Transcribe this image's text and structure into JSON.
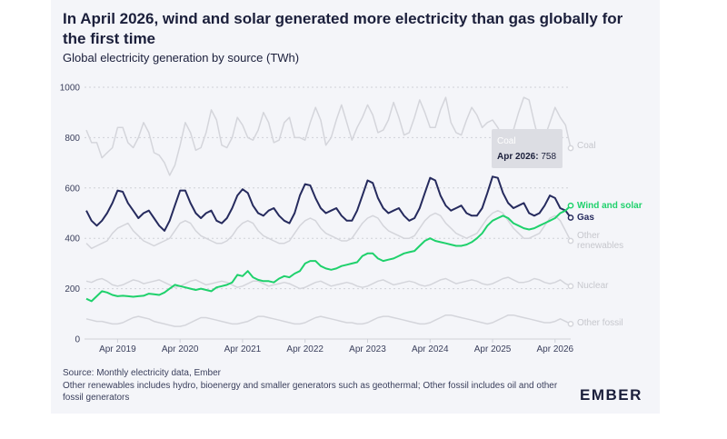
{
  "title": "In April 2026, wind and solar generated more electricity than gas globally for the first time",
  "subtitle": "Global electricity generation by source (TWh)",
  "source": "Source: Monthly electricity data, Ember",
  "notes": "Other renewables includes hydro, bioenergy and smaller generators such as geothermal; Other fossil includes oil and other fossil generators",
  "logo": "EMBER",
  "colors": {
    "wind_solar": "#1fd16c",
    "gas": "#262b5e",
    "grey": "#d4d5db",
    "grid": "#cfd1d8",
    "faded_label": "#c6c7cd"
  },
  "tooltip": {
    "label": "Apr 2026:",
    "value": "758",
    "series": "Coal"
  },
  "chart_data": {
    "type": "line",
    "x_start": "2018-10",
    "x_end": "2026-04",
    "x_ticks": [
      "Apr 2019",
      "Apr 2020",
      "Apr 2021",
      "Apr 2022",
      "Apr 2023",
      "Apr 2024",
      "Apr 2025",
      "Apr 2026"
    ],
    "ylim": [
      0,
      1000
    ],
    "yticks": [
      0,
      200,
      400,
      600,
      800,
      1000
    ],
    "grid": true,
    "series": [
      {
        "name": "Coal",
        "highlight": false,
        "end_value": 758,
        "values": [
          830,
          780,
          780,
          720,
          740,
          760,
          840,
          840,
          780,
          760,
          800,
          860,
          820,
          740,
          730,
          700,
          650,
          690,
          770,
          860,
          820,
          750,
          760,
          820,
          910,
          870,
          770,
          760,
          800,
          880,
          850,
          800,
          790,
          830,
          900,
          860,
          780,
          790,
          860,
          880,
          800,
          800,
          790,
          860,
          920,
          870,
          770,
          800,
          870,
          930,
          860,
          790,
          840,
          880,
          930,
          890,
          820,
          830,
          870,
          940,
          880,
          810,
          820,
          880,
          950,
          900,
          840,
          840,
          910,
          960,
          860,
          820,
          810,
          870,
          920,
          890,
          840,
          860,
          870,
          840,
          800,
          780,
          830,
          900,
          960,
          950,
          860,
          780,
          800,
          860,
          920,
          880,
          850,
          758
        ]
      },
      {
        "name": "Other renewables",
        "highlight": false,
        "end_value": 390,
        "values": [
          380,
          360,
          370,
          380,
          390,
          420,
          440,
          450,
          460,
          430,
          410,
          390,
          380,
          370,
          380,
          390,
          400,
          430,
          460,
          470,
          460,
          430,
          410,
          400,
          390,
          380,
          380,
          390,
          410,
          440,
          460,
          470,
          460,
          430,
          410,
          400,
          390,
          380,
          380,
          390,
          420,
          450,
          470,
          480,
          470,
          440,
          420,
          410,
          400,
          390,
          390,
          400,
          430,
          460,
          480,
          490,
          480,
          450,
          430,
          420,
          410,
          400,
          400,
          410,
          440,
          470,
          490,
          500,
          490,
          460,
          440,
          420,
          410,
          400,
          410,
          420,
          450,
          480,
          500,
          510,
          500,
          470,
          440,
          420,
          400,
          400,
          410,
          420,
          450,
          480,
          490,
          470,
          430,
          390
        ]
      },
      {
        "name": "Nuclear",
        "highlight": false,
        "end_value": 210,
        "values": [
          230,
          225,
          235,
          240,
          230,
          215,
          210,
          215,
          225,
          235,
          230,
          220,
          225,
          230,
          235,
          225,
          215,
          205,
          210,
          220,
          230,
          235,
          225,
          215,
          220,
          225,
          230,
          225,
          215,
          205,
          210,
          220,
          230,
          230,
          220,
          210,
          215,
          220,
          225,
          220,
          210,
          200,
          205,
          215,
          225,
          230,
          220,
          210,
          215,
          220,
          225,
          220,
          210,
          205,
          210,
          220,
          230,
          235,
          225,
          215,
          220,
          225,
          230,
          225,
          215,
          210,
          215,
          225,
          235,
          240,
          230,
          220,
          225,
          230,
          235,
          230,
          220,
          215,
          220,
          230,
          240,
          245,
          235,
          225,
          225,
          230,
          240,
          235,
          225,
          220,
          225,
          235,
          220,
          210
        ]
      },
      {
        "name": "Other fossil",
        "highlight": false,
        "end_value": 60,
        "values": [
          80,
          75,
          70,
          70,
          65,
          60,
          60,
          65,
          75,
          85,
          90,
          85,
          80,
          70,
          65,
          60,
          55,
          50,
          50,
          55,
          65,
          75,
          85,
          85,
          80,
          75,
          70,
          65,
          60,
          60,
          65,
          70,
          80,
          90,
          90,
          85,
          80,
          75,
          70,
          65,
          60,
          60,
          65,
          75,
          85,
          90,
          85,
          80,
          75,
          70,
          65,
          65,
          60,
          60,
          65,
          75,
          85,
          90,
          90,
          85,
          80,
          75,
          70,
          65,
          60,
          60,
          65,
          75,
          85,
          95,
          95,
          90,
          85,
          80,
          75,
          70,
          65,
          60,
          65,
          75,
          85,
          95,
          95,
          90,
          85,
          80,
          75,
          70,
          65,
          65,
          70,
          80,
          70,
          60
        ]
      },
      {
        "name": "Gas",
        "highlight": true,
        "end_value": 482,
        "values": [
          510,
          470,
          450,
          470,
          500,
          540,
          590,
          585,
          540,
          510,
          480,
          500,
          510,
          480,
          450,
          430,
          470,
          530,
          590,
          590,
          540,
          500,
          480,
          500,
          510,
          470,
          460,
          480,
          520,
          570,
          595,
          580,
          530,
          500,
          490,
          510,
          520,
          490,
          470,
          460,
          500,
          570,
          615,
          610,
          560,
          520,
          500,
          510,
          520,
          490,
          470,
          470,
          510,
          570,
          630,
          620,
          560,
          520,
          500,
          510,
          520,
          490,
          470,
          480,
          520,
          580,
          640,
          630,
          570,
          530,
          510,
          520,
          530,
          500,
          490,
          490,
          520,
          580,
          645,
          640,
          580,
          540,
          520,
          530,
          540,
          500,
          490,
          500,
          530,
          570,
          560,
          520,
          510,
          482
        ]
      },
      {
        "name": "Wind and solar",
        "highlight": true,
        "end_value": 530,
        "values": [
          160,
          150,
          170,
          190,
          185,
          175,
          170,
          172,
          170,
          168,
          170,
          172,
          180,
          178,
          175,
          185,
          200,
          215,
          210,
          205,
          200,
          195,
          200,
          195,
          190,
          205,
          210,
          215,
          225,
          255,
          250,
          270,
          245,
          235,
          230,
          230,
          225,
          240,
          250,
          245,
          260,
          270,
          300,
          310,
          310,
          290,
          280,
          275,
          280,
          290,
          295,
          300,
          305,
          330,
          340,
          340,
          320,
          310,
          315,
          320,
          330,
          340,
          345,
          350,
          370,
          390,
          400,
          390,
          385,
          380,
          375,
          370,
          370,
          375,
          385,
          400,
          420,
          450,
          470,
          480,
          490,
          480,
          460,
          450,
          440,
          435,
          440,
          450,
          460,
          470,
          480,
          500,
          510,
          530
        ]
      }
    ]
  }
}
